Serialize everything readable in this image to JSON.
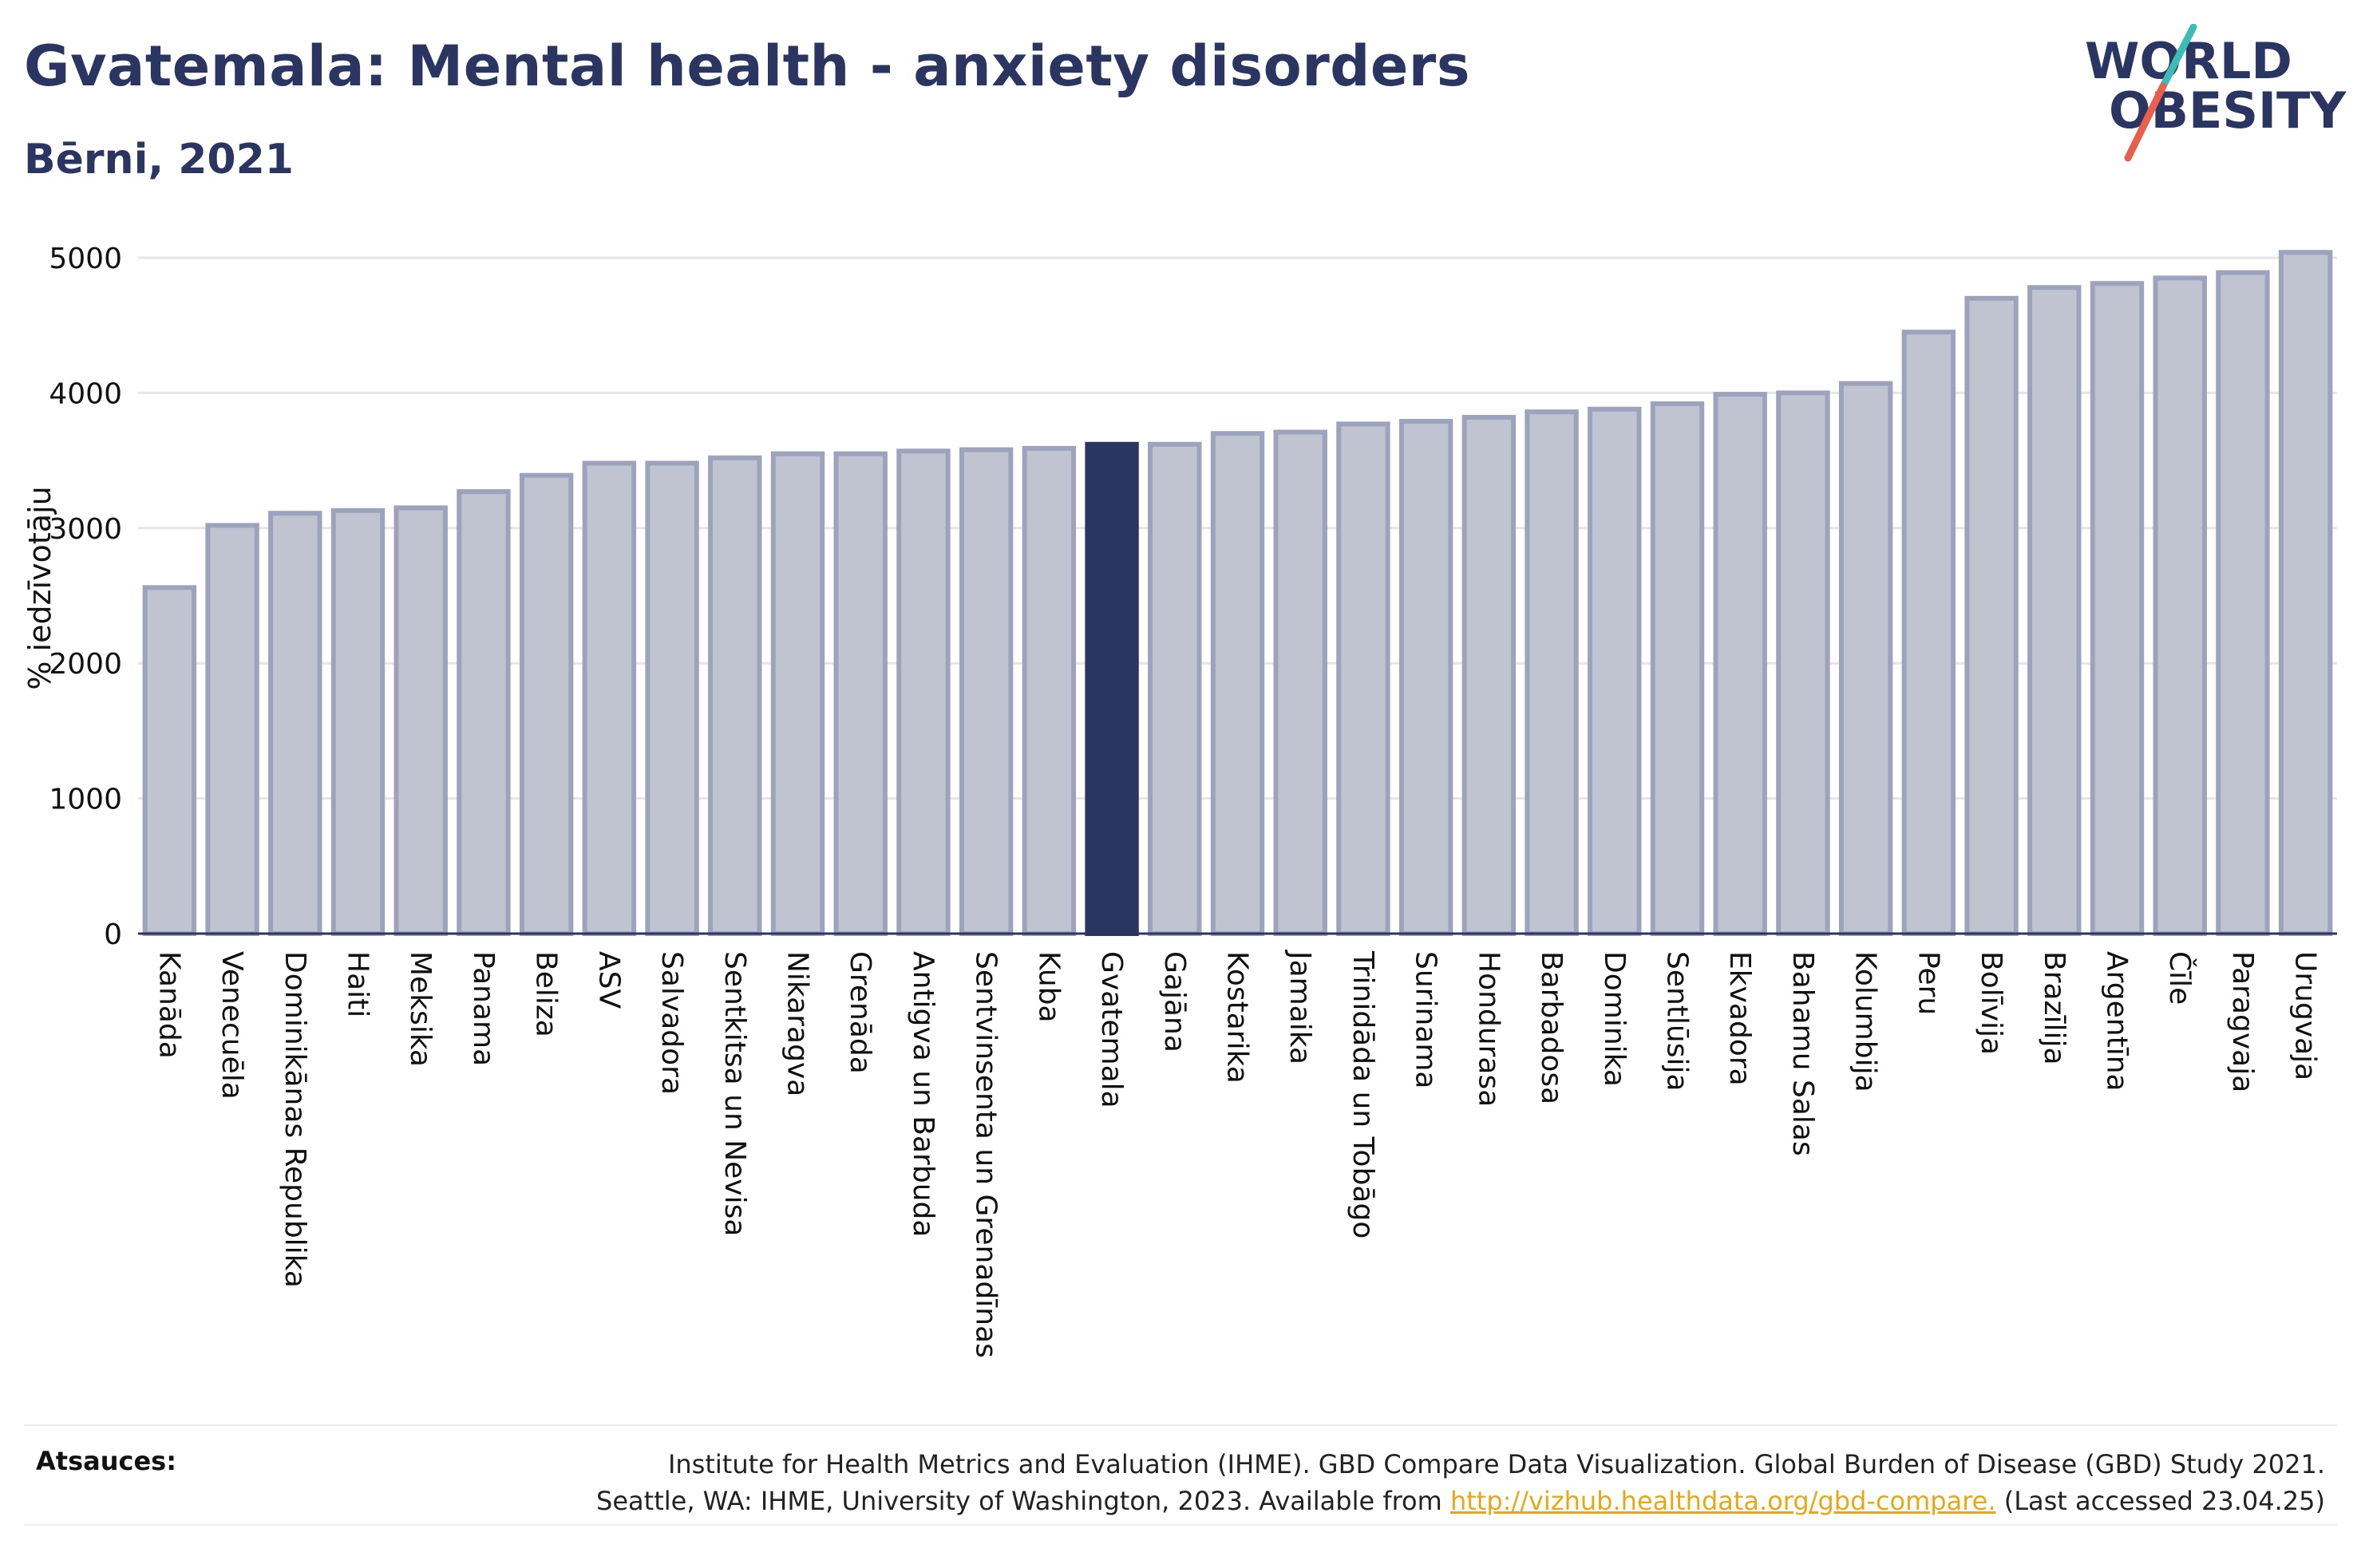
{
  "header": {
    "title": "Gvatemala: Mental health - anxiety disorders",
    "subtitle": "Bērni, 2021"
  },
  "logo": {
    "line1": "WORLD",
    "line2": "OBESITY",
    "colors": {
      "text": "#2b3562",
      "slash_teal": "#3dbcb5",
      "slash_red": "#e8604c"
    }
  },
  "chart_data": {
    "type": "bar",
    "title": "",
    "xlabel": "",
    "ylabel": "% iedzīvotāju",
    "ylim": [
      0,
      5000
    ],
    "yticks": [
      0,
      1000,
      2000,
      3000,
      4000,
      5000
    ],
    "grid": true,
    "highlight": "Gvatemala",
    "colors": {
      "bar": "#c0c4d0",
      "bar_border": "#9da3bc",
      "highlight": "#2b3562"
    },
    "categories": [
      "Kanāda",
      "Venecuēla",
      "Dominikānas Republika",
      "Haiti",
      "Meksika",
      "Panama",
      "Beliza",
      "ASV",
      "Salvadora",
      "Sentkitsa un Nevisa",
      "Nikaragva",
      "Grenāda",
      "Antigva un Barbuda",
      "Sentvinsenta un Grenadīnas",
      "Kuba",
      "Gvatemala",
      "Gajāna",
      "Kostarika",
      "Jamaika",
      "Trinidāda un Tobāgo",
      "Surinama",
      "Hondurasa",
      "Barbadosa",
      "Dominika",
      "Sentlūsija",
      "Ekvadora",
      "Bahamu Salas",
      "Kolumbija",
      "Peru",
      "Bolīvija",
      "Brazīlija",
      "Argentīna",
      "Čīle",
      "Paragvaja",
      "Urugvaja"
    ],
    "values": [
      2560,
      3020,
      3110,
      3130,
      3150,
      3270,
      3390,
      3480,
      3480,
      3520,
      3550,
      3550,
      3570,
      3580,
      3590,
      3620,
      3620,
      3700,
      3710,
      3770,
      3790,
      3820,
      3860,
      3880,
      3920,
      3990,
      4000,
      4070,
      4450,
      4700,
      4780,
      4810,
      4850,
      4890,
      5040
    ]
  },
  "footer": {
    "sources_label": "Atsauces:",
    "source_line1": "Institute for Health Metrics and Evaluation (IHME). GBD Compare Data Visualization. Global Burden of Disease (GBD) Study 2021.",
    "source_line2_prefix": "Seattle, WA: IHME, University of Washington, 2023. Available from ",
    "source_link": "http://vizhub.healthdata.org/gbd-compare.",
    "source_line2_suffix": " (Last accessed 23.04.25)"
  }
}
